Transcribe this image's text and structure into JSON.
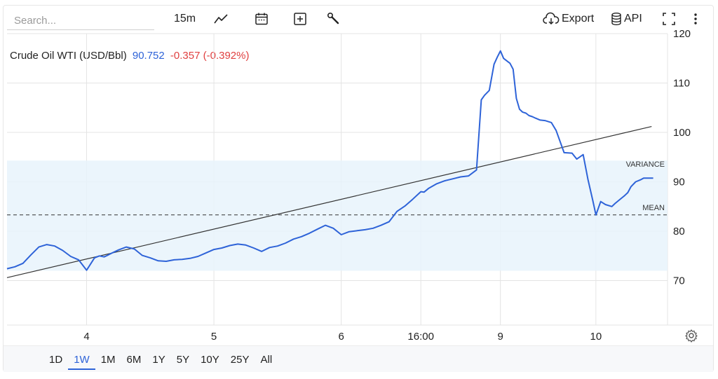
{
  "toolbar": {
    "search_placeholder": "Search...",
    "interval_label": "15m",
    "export_label": "Export",
    "api_label": "API"
  },
  "legend": {
    "name": "Crude Oil WTI (USD/Bbl)",
    "price": "90.752",
    "change": "-0.357 (-0.392%)"
  },
  "ranges": [
    {
      "label": "1D"
    },
    {
      "label": "1W",
      "active": true
    },
    {
      "label": "1M"
    },
    {
      "label": "6M"
    },
    {
      "label": "1Y"
    },
    {
      "label": "5Y"
    },
    {
      "label": "10Y"
    },
    {
      "label": "25Y"
    },
    {
      "label": "All"
    }
  ],
  "colors": {
    "series": "#2e63d8",
    "band": "#e8f3fb",
    "grid": "#e4e4e4",
    "trend": "#333333",
    "positive": "#2e63d8",
    "negative": "#e04040"
  },
  "chart_data": {
    "type": "line",
    "title": "Crude Oil WTI (USD/Bbl)",
    "xlim": [
      0,
      4.15
    ],
    "ylim": [
      61,
      120
    ],
    "y_ticks": [
      70,
      80,
      90,
      100,
      110,
      120
    ],
    "x_ticks": [
      {
        "x": 0.5,
        "label": "4"
      },
      {
        "x": 1.3,
        "label": "5"
      },
      {
        "x": 2.1,
        "label": "6"
      },
      {
        "x": 2.6,
        "label": "16:00"
      },
      {
        "x": 3.1,
        "label": "9"
      },
      {
        "x": 3.7,
        "label": "10"
      }
    ],
    "annotations": {
      "mean": {
        "value": 83.3,
        "label": "MEAN"
      },
      "variance_band": {
        "low": 72.0,
        "high": 94.3,
        "label": "VARIANCE"
      },
      "trendline": {
        "start": [
          0,
          70.6
        ],
        "end": [
          4.05,
          101.2
        ]
      }
    },
    "grid": true,
    "series": [
      {
        "x": [
          0,
          0.05,
          0.1,
          0.15,
          0.2,
          0.25,
          0.3,
          0.35,
          0.4,
          0.45,
          0.5,
          0.55,
          0.58,
          0.61,
          0.63,
          0.66,
          0.7,
          0.75,
          0.8,
          0.85,
          0.9,
          0.95,
          1.0,
          1.05,
          1.1,
          1.15,
          1.2,
          1.25,
          1.3,
          1.35,
          1.4,
          1.45,
          1.5,
          1.55,
          1.6,
          1.65,
          1.7,
          1.75,
          1.8,
          1.85,
          1.9,
          1.95,
          2.0,
          2.05,
          2.1,
          2.15,
          2.2,
          2.25,
          2.3,
          2.35,
          2.4,
          2.45,
          2.5,
          2.55,
          2.6,
          2.62,
          2.65,
          2.7,
          2.75,
          2.8,
          2.85,
          2.9,
          2.95,
          2.98,
          3.0,
          3.03,
          3.06,
          3.08,
          3.1,
          3.12,
          3.14,
          3.16,
          3.18,
          3.2,
          3.22,
          3.24,
          3.26,
          3.28,
          3.3,
          3.32,
          3.35,
          3.38,
          3.42,
          3.45,
          3.5,
          3.55,
          3.58,
          3.62,
          3.65,
          3.68,
          3.7,
          3.73,
          3.76,
          3.8,
          3.82,
          3.85,
          3.88,
          3.9,
          3.92,
          3.95,
          3.98,
          4.0,
          4.02,
          4.04,
          4.06
        ],
        "y": [
          72.4,
          72.8,
          73.5,
          75.2,
          76.8,
          77.3,
          77.0,
          76.1,
          74.9,
          74.2,
          72.1,
          74.6,
          75.0,
          74.8,
          75.1,
          75.6,
          76.2,
          76.8,
          76.4,
          75.1,
          74.6,
          74.0,
          73.9,
          74.2,
          74.3,
          74.5,
          74.9,
          75.6,
          76.3,
          76.6,
          77.1,
          77.4,
          77.2,
          76.6,
          75.9,
          76.7,
          77.0,
          77.6,
          78.4,
          78.9,
          79.6,
          80.4,
          81.2,
          80.6,
          79.3,
          79.9,
          80.1,
          80.3,
          80.6,
          81.2,
          81.9,
          84.0,
          85.1,
          86.5,
          88.0,
          87.9,
          88.7,
          89.6,
          90.2,
          90.6,
          91.0,
          91.2,
          92.4,
          106.6,
          107.5,
          108.5,
          113.8,
          115.2,
          116.5,
          115.0,
          114.5,
          114.0,
          112.8,
          106.9,
          104.7,
          104.1,
          103.9,
          103.4,
          103.2,
          102.9,
          102.5,
          102.4,
          102.0,
          100.4,
          95.9,
          95.8,
          94.6,
          95.5,
          90.5,
          86.3,
          83.3,
          86.0,
          85.4,
          85.0,
          85.6,
          86.4,
          87.2,
          87.8,
          89.0,
          90.0,
          90.4,
          90.752,
          90.752,
          90.752,
          90.752
        ]
      }
    ]
  }
}
